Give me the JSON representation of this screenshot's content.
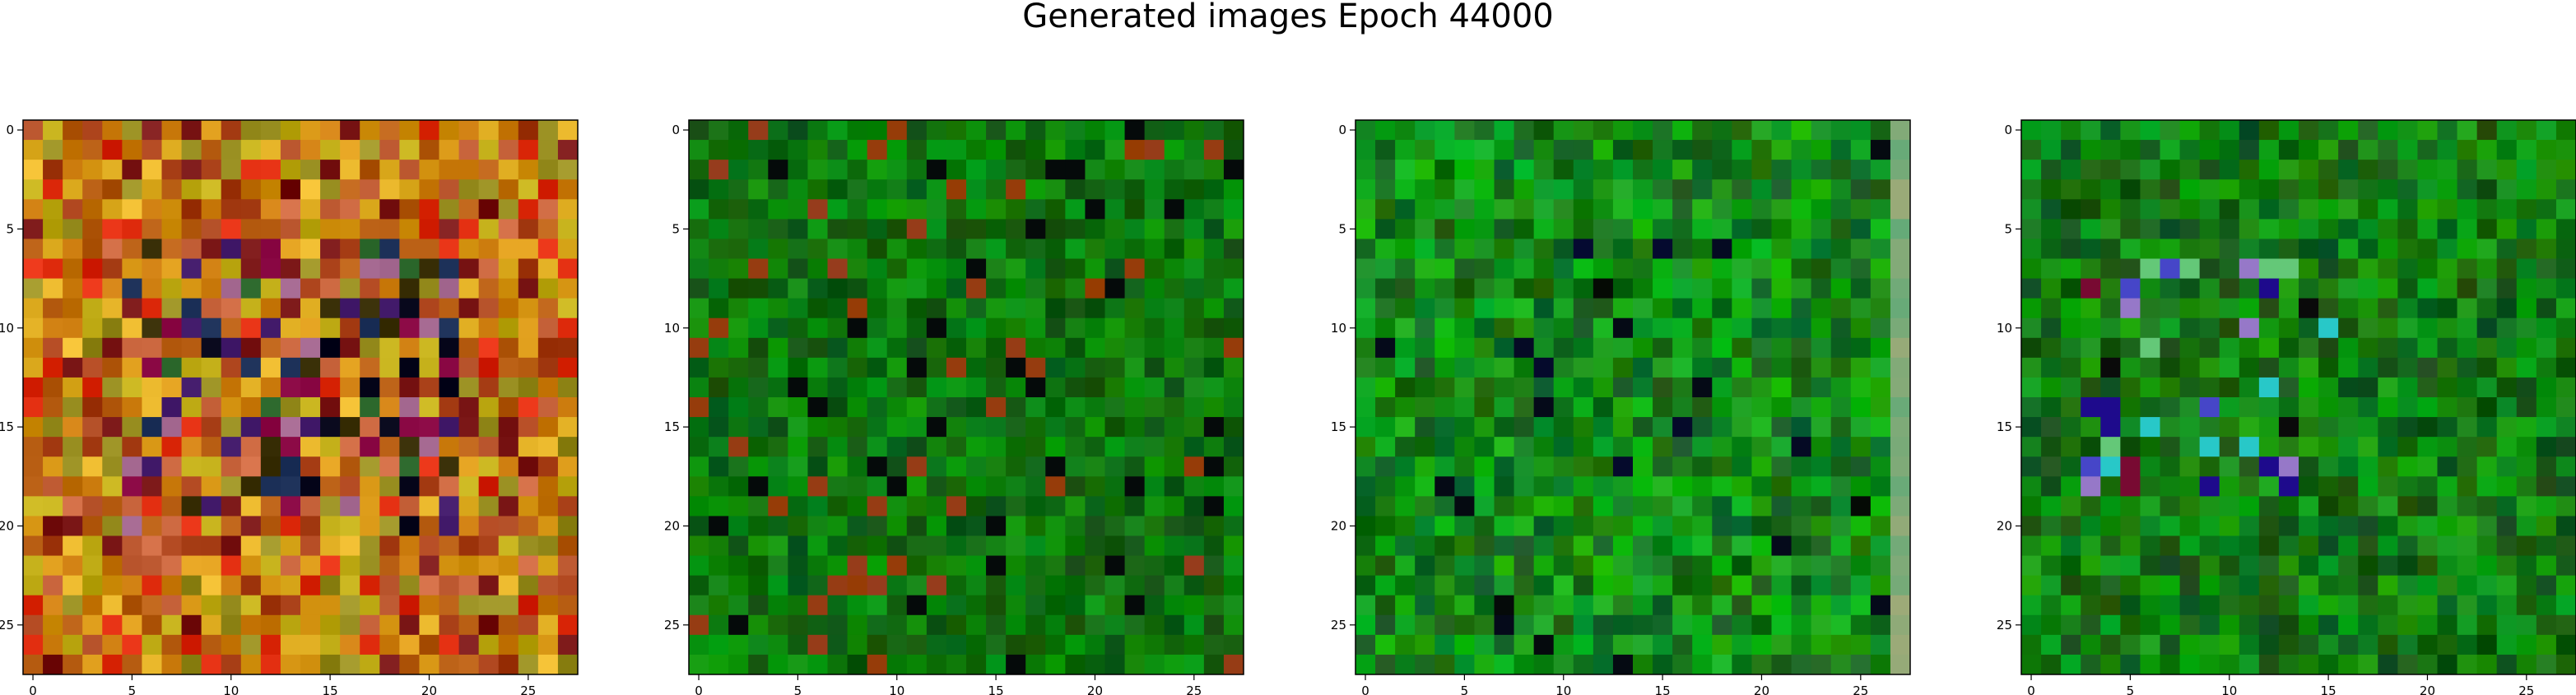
{
  "figure": {
    "title": "Generated images Epoch 44000"
  },
  "chart_data": [
    {
      "type": "heatmap",
      "panel": 1,
      "palette": "warm",
      "xticks": [
        0,
        5,
        10,
        15,
        20,
        25
      ],
      "yticks": [
        0,
        5,
        10,
        15,
        20,
        25
      ],
      "xlim": [
        -0.5,
        27.5
      ],
      "ylim": [
        27.5,
        -0.5
      ],
      "grid": false,
      "rows": 28,
      "cols": 28
    },
    {
      "type": "heatmap",
      "panel": 2,
      "palette": "green",
      "xticks": [
        0,
        5,
        10,
        15,
        20,
        25
      ],
      "yticks": [
        0,
        5,
        10,
        15,
        20,
        25
      ],
      "xlim": [
        -0.5,
        27.5
      ],
      "ylim": [
        27.5,
        -0.5
      ],
      "grid": false,
      "rows": 28,
      "cols": 28
    },
    {
      "type": "heatmap",
      "panel": 3,
      "palette": "green-bright",
      "xticks": [
        0,
        5,
        10,
        15,
        20,
        25
      ],
      "yticks": [
        0,
        5,
        10,
        15,
        20,
        25
      ],
      "xlim": [
        -0.5,
        27.5
      ],
      "ylim": [
        27.5,
        -0.5
      ],
      "grid": false,
      "rows": 28,
      "cols": 28
    },
    {
      "type": "heatmap",
      "panel": 4,
      "palette": "green-mixed",
      "xticks": [
        0,
        5,
        10,
        15,
        20,
        25
      ],
      "yticks": [
        0,
        5,
        10,
        15,
        20,
        25
      ],
      "xlim": [
        -0.5,
        27.5
      ],
      "ylim": [
        27.5,
        -0.5
      ],
      "grid": false,
      "rows": 28,
      "cols": 28
    }
  ]
}
